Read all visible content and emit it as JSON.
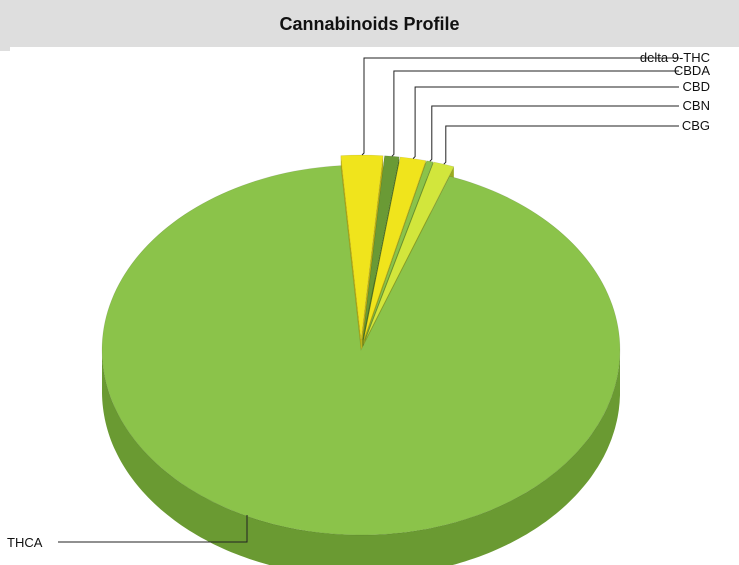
{
  "header": {
    "title": "Cannabinoids Profile"
  },
  "chart_data": {
    "type": "pie",
    "title": "Cannabinoids Profile",
    "three_d": true,
    "legend": "none",
    "slices": [
      {
        "label": "THCA",
        "value": 93.2,
        "color": "#8bc34a",
        "side": "#6a9a32"
      },
      {
        "label": "delta 9-THC",
        "value": 2.6,
        "color": "#f0e41c",
        "side": "#b8ad12"
      },
      {
        "label": "CBDA",
        "value": 0.9,
        "color": "#6a9a35",
        "side": "#4e7426"
      },
      {
        "label": "CBD",
        "value": 1.6,
        "color": "#f0e41c",
        "side": "#b8ad12"
      },
      {
        "label": "CBN",
        "value": 0.4,
        "color": "#8bc34a",
        "side": "#6a9a32"
      },
      {
        "label": "CBG",
        "value": 1.3,
        "color": "#d2e63c",
        "side": "#9aab20"
      }
    ]
  }
}
